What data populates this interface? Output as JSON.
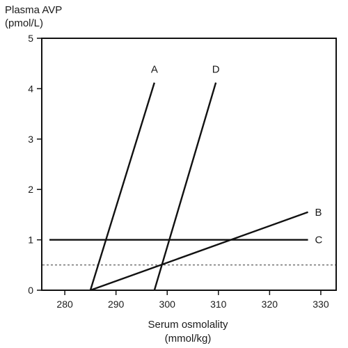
{
  "chart_data": {
    "type": "line",
    "ylabel_lines": [
      "Plasma AVP",
      "(pmol/L)"
    ],
    "xlabel_lines": [
      "Serum osmolality",
      "(mmol/kg)"
    ],
    "xlim": [
      275.5,
      333
    ],
    "ylim": [
      0,
      5
    ],
    "x_ticks": [
      280,
      290,
      300,
      310,
      320,
      330
    ],
    "y_ticks": [
      0,
      1,
      2,
      3,
      4,
      5
    ],
    "series": [
      {
        "name": "A",
        "x": [
          285,
          297.5
        ],
        "y": [
          0,
          4.12
        ]
      },
      {
        "name": "D",
        "x": [
          297.5,
          309.5
        ],
        "y": [
          0,
          4.12
        ]
      },
      {
        "name": "B",
        "x": [
          285,
          327.5
        ],
        "y": [
          0,
          1.55
        ]
      },
      {
        "name": "C",
        "x": [
          277,
          327.5
        ],
        "y": [
          1,
          1
        ]
      }
    ],
    "reference_line": {
      "y": 0.5,
      "style": "dashed"
    },
    "grid": false
  }
}
